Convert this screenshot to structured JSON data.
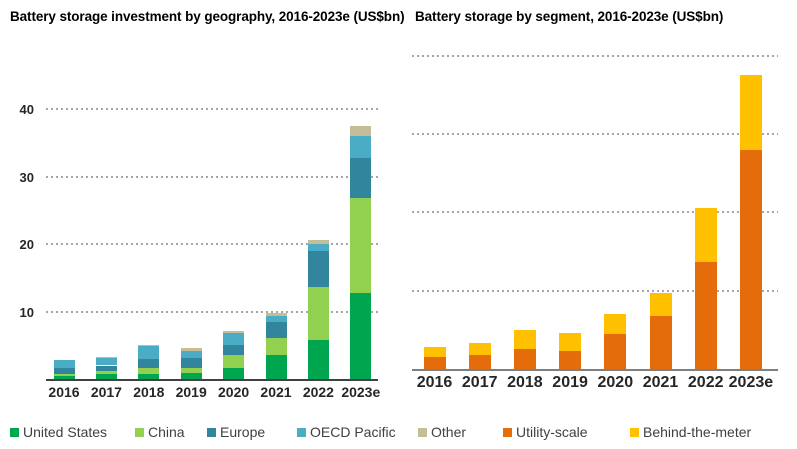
{
  "chart_data": [
    {
      "type": "bar",
      "stacked": true,
      "title": "Battery storage investment by geography, 2016-2023e (US$bn)",
      "categories": [
        "2016",
        "2017",
        "2018",
        "2019",
        "2020",
        "2021",
        "2022",
        "2023e"
      ],
      "y_ticks": [
        10,
        20,
        30,
        40
      ],
      "ylim": [
        0,
        45
      ],
      "grid": "dotted-horizontal",
      "y_axis_labels_visible": true,
      "series": [
        {
          "name": "United States",
          "color": "#00a64f",
          "values": [
            0.4,
            0.7,
            0.8,
            0.9,
            1.7,
            3.6,
            5.8,
            12.8
          ]
        },
        {
          "name": "China",
          "color": "#92d050",
          "values": [
            0.3,
            0.5,
            0.8,
            0.8,
            1.8,
            2.5,
            7.9,
            14.0
          ]
        },
        {
          "name": "Europe",
          "color": "#31859c",
          "values": [
            0.9,
            0.8,
            1.3,
            1.4,
            1.6,
            2.3,
            5.2,
            5.9
          ]
        },
        {
          "name": "OECD Pacific",
          "color": "#4bacc6",
          "values": [
            1.2,
            1.2,
            2.0,
            1.0,
            1.7,
            1.0,
            1.1,
            3.3
          ]
        },
        {
          "name": "Other",
          "color": "#c4bd97",
          "values": [
            0,
            0.1,
            0.1,
            0.5,
            0.3,
            0.4,
            0.6,
            1.5
          ]
        }
      ],
      "totals": [
        2.8,
        3.3,
        5.0,
        4.6,
        7.1,
        9.8,
        20.6,
        37.5
      ]
    },
    {
      "type": "bar",
      "stacked": true,
      "title": "Battery storage by segment, 2016-2023e (US$bn)",
      "categories": [
        "2016",
        "2017",
        "2018",
        "2019",
        "2020",
        "2021",
        "2022",
        "2023e"
      ],
      "y_ticks": [
        10,
        20,
        30,
        40
      ],
      "ylim": [
        0,
        40.5
      ],
      "grid": "dotted-horizontal",
      "y_axis_labels_visible": false,
      "series": [
        {
          "name": "Utility-scale",
          "color": "#e46c0a",
          "values": [
            1.5,
            1.8,
            2.6,
            2.3,
            4.5,
            6.8,
            13.7,
            28.0
          ]
        },
        {
          "name": "Behind-the-meter",
          "color": "#ffc000",
          "values": [
            1.3,
            1.5,
            2.4,
            2.3,
            2.5,
            2.9,
            6.9,
            9.5
          ]
        },
        {
          "name": "Other",
          "color": "#c4bd97",
          "values": [
            0,
            0,
            0,
            0,
            0,
            0,
            0,
            0
          ]
        }
      ],
      "totals": [
        2.8,
        3.3,
        5.0,
        4.6,
        7.0,
        9.7,
        20.6,
        37.5
      ]
    }
  ],
  "legend": {
    "items": [
      {
        "label": "United States",
        "color": "#00a64f"
      },
      {
        "label": "China",
        "color": "#92d050"
      },
      {
        "label": "Europe",
        "color": "#31859c"
      },
      {
        "label": "OECD Pacific",
        "color": "#4bacc6"
      },
      {
        "label": "Other",
        "color": "#c4bd97"
      },
      {
        "label": "Utility-scale",
        "color": "#e46c0a"
      },
      {
        "label": "Behind-the-meter",
        "color": "#ffc000"
      }
    ]
  }
}
